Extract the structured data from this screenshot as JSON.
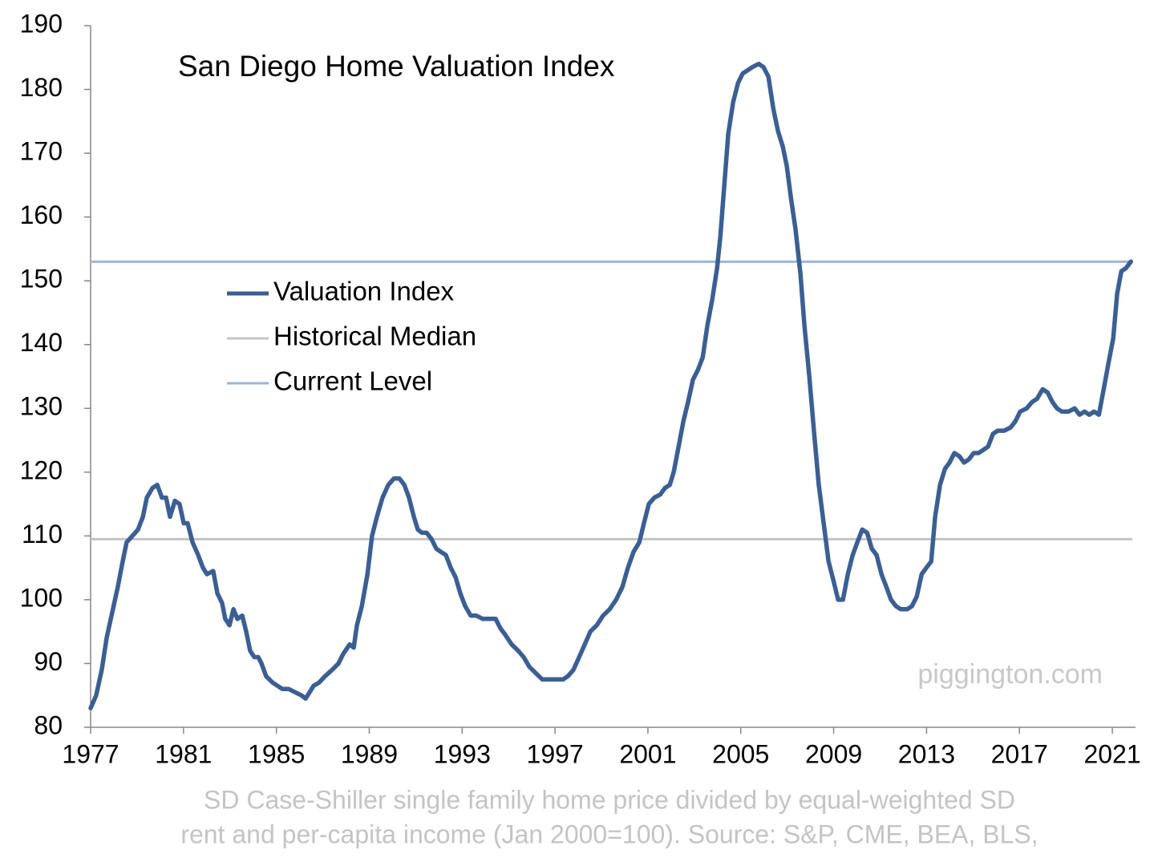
{
  "chart_data": {
    "type": "line",
    "title": "San Diego Home Valuation Index",
    "watermark": "piggington.com",
    "caption": [
      "SD Case-Shiller single family home price divided by equal-weighted SD",
      "rent and per-capita income (Jan 2000=100). Source: S&P, CME, BEA, BLS,"
    ],
    "xlim": [
      1977,
      2022
    ],
    "xticks": [
      1977,
      1981,
      1985,
      1989,
      1993,
      1997,
      2001,
      2005,
      2009,
      2013,
      2017,
      2021
    ],
    "ylim": [
      80,
      190
    ],
    "yticks": [
      80,
      90,
      100,
      110,
      120,
      130,
      140,
      150,
      160,
      170,
      180,
      190
    ],
    "series": [
      {
        "name": "Valuation Index",
        "color": "#3b5f93",
        "x": [
          1977.0,
          1977.24,
          1977.48,
          1977.69,
          1977.93,
          1978.17,
          1978.38,
          1978.55,
          1978.8,
          1979.04,
          1979.25,
          1979.42,
          1979.66,
          1979.87,
          1980.07,
          1980.25,
          1980.42,
          1980.63,
          1980.83,
          1981.01,
          1981.18,
          1981.39,
          1981.63,
          1981.84,
          1982.01,
          1982.28,
          1982.46,
          1982.66,
          1982.8,
          1982.98,
          1983.15,
          1983.32,
          1983.53,
          1983.7,
          1983.87,
          1984.05,
          1984.22,
          1984.36,
          1984.56,
          1984.84,
          1985.05,
          1985.26,
          1985.53,
          1985.81,
          1986.08,
          1986.26,
          1986.43,
          1986.6,
          1986.84,
          1987.09,
          1987.4,
          1987.67,
          1987.88,
          1988.16,
          1988.33,
          1988.47,
          1988.68,
          1988.92,
          1989.12,
          1989.33,
          1989.57,
          1989.82,
          1990.06,
          1990.3,
          1990.51,
          1990.71,
          1990.92,
          1991.09,
          1991.27,
          1991.47,
          1991.68,
          1991.89,
          1992.09,
          1992.3,
          1992.51,
          1992.72,
          1992.92,
          1993.13,
          1993.37,
          1993.61,
          1993.89,
          1994.17,
          1994.44,
          1994.65,
          1994.86,
          1995.13,
          1995.41,
          1995.65,
          1995.89,
          1996.17,
          1996.45,
          1996.72,
          1997.03,
          1997.35,
          1997.55,
          1997.79,
          1998.04,
          1998.28,
          1998.52,
          1998.8,
          1999.07,
          1999.35,
          1999.63,
          1999.9,
          2000.14,
          2000.38,
          2000.63,
          2000.83,
          2001.04,
          2001.28,
          2001.53,
          2001.73,
          2001.94,
          2002.11,
          2002.32,
          2002.53,
          2002.73,
          2002.94,
          2003.15,
          2003.36,
          2003.56,
          2003.77,
          2003.98,
          2004.12,
          2004.29,
          2004.46,
          2004.67,
          2004.88,
          2005.08,
          2005.29,
          2005.5,
          2005.77,
          2005.98,
          2006.19,
          2006.4,
          2006.6,
          2006.81,
          2006.98,
          2007.16,
          2007.36,
          2007.57,
          2007.74,
          2007.95,
          2008.16,
          2008.36,
          2008.57,
          2008.78,
          2008.99,
          2009.19,
          2009.4,
          2009.61,
          2009.82,
          2010.02,
          2010.23,
          2010.44,
          2010.64,
          2010.85,
          2011.06,
          2011.27,
          2011.47,
          2011.68,
          2011.89,
          2012.16,
          2012.37,
          2012.58,
          2012.79,
          2012.99,
          2013.2,
          2013.37,
          2013.58,
          2013.79,
          2013.99,
          2014.2,
          2014.41,
          2014.62,
          2014.82,
          2015.03,
          2015.24,
          2015.45,
          2015.65,
          2015.86,
          2016.07,
          2016.34,
          2016.62,
          2016.83,
          2017.03,
          2017.31,
          2017.55,
          2017.76,
          2018.0,
          2018.21,
          2018.42,
          2018.62,
          2018.83,
          2019.11,
          2019.38,
          2019.59,
          2019.8,
          2020.01,
          2020.21,
          2020.42,
          2020.63,
          2020.83,
          2021.04,
          2021.21,
          2021.39,
          2021.59,
          2021.8
        ],
        "values": [
          83,
          85,
          89,
          94,
          98,
          102,
          106,
          109,
          110,
          111,
          113,
          116,
          117.5,
          118,
          116,
          116,
          113,
          115.5,
          115,
          112,
          112,
          109,
          107,
          105,
          104,
          104.5,
          101,
          99.5,
          97,
          96,
          98.5,
          97,
          97.5,
          95,
          92,
          91,
          91,
          90,
          88,
          87,
          86.5,
          86,
          86,
          85.5,
          85,
          84.5,
          85.5,
          86.5,
          87,
          88,
          89,
          90,
          91.5,
          93,
          92.5,
          96,
          99,
          104,
          110,
          113,
          116,
          118,
          119,
          119,
          118,
          116,
          113,
          111,
          110.5,
          110.5,
          109.5,
          108,
          107.5,
          107,
          105,
          103.5,
          101,
          99,
          97.5,
          97.5,
          97,
          97,
          97,
          95.5,
          94.5,
          93,
          92,
          91,
          89.5,
          88.5,
          87.5,
          87.5,
          87.5,
          87.5,
          88,
          89,
          91,
          93,
          95,
          96,
          97.5,
          98.5,
          100,
          102,
          105,
          107.5,
          109,
          112,
          115,
          116,
          116.5,
          117.5,
          118,
          120,
          124,
          128,
          131,
          134.5,
          136,
          138,
          143,
          147,
          152,
          157,
          165,
          173,
          178,
          181,
          182.5,
          183,
          183.5,
          184,
          183.5,
          182,
          177,
          173.5,
          171,
          168,
          163,
          158,
          151,
          143,
          135,
          126,
          118,
          112,
          106,
          103,
          100,
          100,
          104,
          107,
          109,
          111,
          110.5,
          108,
          107,
          104,
          102,
          100,
          99,
          98.5,
          98.5,
          99,
          100.5,
          104,
          105,
          106,
          113,
          118,
          120.5,
          121.5,
          123,
          122.5,
          121.5,
          122,
          123,
          123,
          123.5,
          124,
          126,
          126.5,
          126.5,
          127,
          128,
          129.5,
          130,
          131,
          131.5,
          133,
          132.5,
          131,
          130,
          129.5,
          129.5,
          130,
          129,
          129.5,
          129,
          129.5,
          129,
          133,
          137,
          141,
          148,
          151.5,
          152,
          153
        ]
      }
    ],
    "reference_lines": [
      {
        "name": "Historical Median",
        "color": "#c4c4c4",
        "value": 109.5
      },
      {
        "name": "Current Level",
        "color": "#9bb6dc",
        "value": 153
      }
    ]
  }
}
